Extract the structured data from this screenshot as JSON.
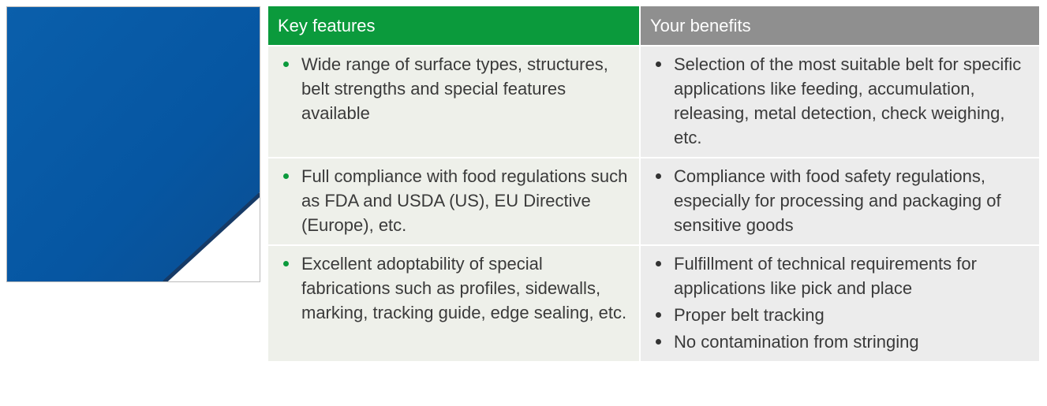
{
  "table": {
    "header": [
      "Key features",
      "Your benefits"
    ],
    "rows": [
      {
        "features": [
          "Wide range of surface types, structures, belt strengths and special features available"
        ],
        "benefits": [
          "Selection of the most suitable belt for specific applications like feeding, accumulation, releasing, metal detection, check weighing, etc."
        ]
      },
      {
        "features": [
          "Full compliance with food regulations such as FDA and USDA (US), EU Directive (Europe), etc."
        ],
        "benefits": [
          "Compliance with food safety regulations, especially for processing and packaging of sensitive goods"
        ]
      },
      {
        "features": [
          "Excellent adoptability of special fabrications such as profiles, sidewalls, marking, tracking guide, edge sealing, etc."
        ],
        "benefits": [
          "Fulfillment of technical requirements for applications like pick and place",
          "Proper belt tracking",
          "No contamination from stringing"
        ]
      }
    ]
  }
}
